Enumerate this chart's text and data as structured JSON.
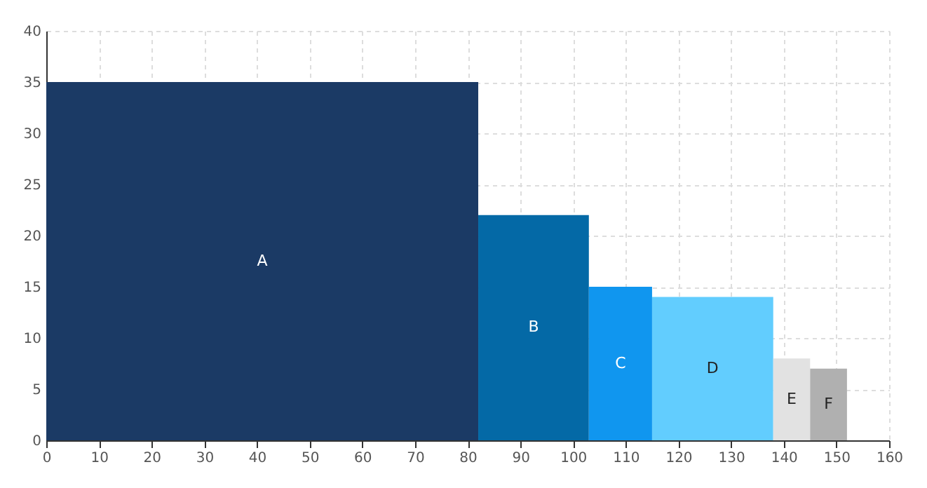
{
  "chart_data": {
    "type": "histogram",
    "bins": [
      0,
      82,
      103,
      115,
      138,
      145,
      152
    ],
    "values": [
      35,
      22,
      15,
      14,
      8,
      7
    ],
    "colors": [
      "#1b3a65",
      "#0469a6",
      "#1096ef",
      "#62cdfe",
      "#e2e2e2",
      "#b0b0b0"
    ],
    "value_labels": [
      "A",
      "B",
      "C",
      "D",
      "E",
      "F"
    ],
    "xlim": [
      0,
      160
    ],
    "xticks": [
      0,
      10,
      20,
      30,
      40,
      50,
      60,
      70,
      80,
      90,
      100,
      110,
      120,
      130,
      140,
      150,
      160
    ],
    "ylim": [
      0,
      40
    ],
    "yticks": [
      0,
      5,
      10,
      15,
      20,
      25,
      30,
      35,
      40
    ],
    "grid": true
  }
}
